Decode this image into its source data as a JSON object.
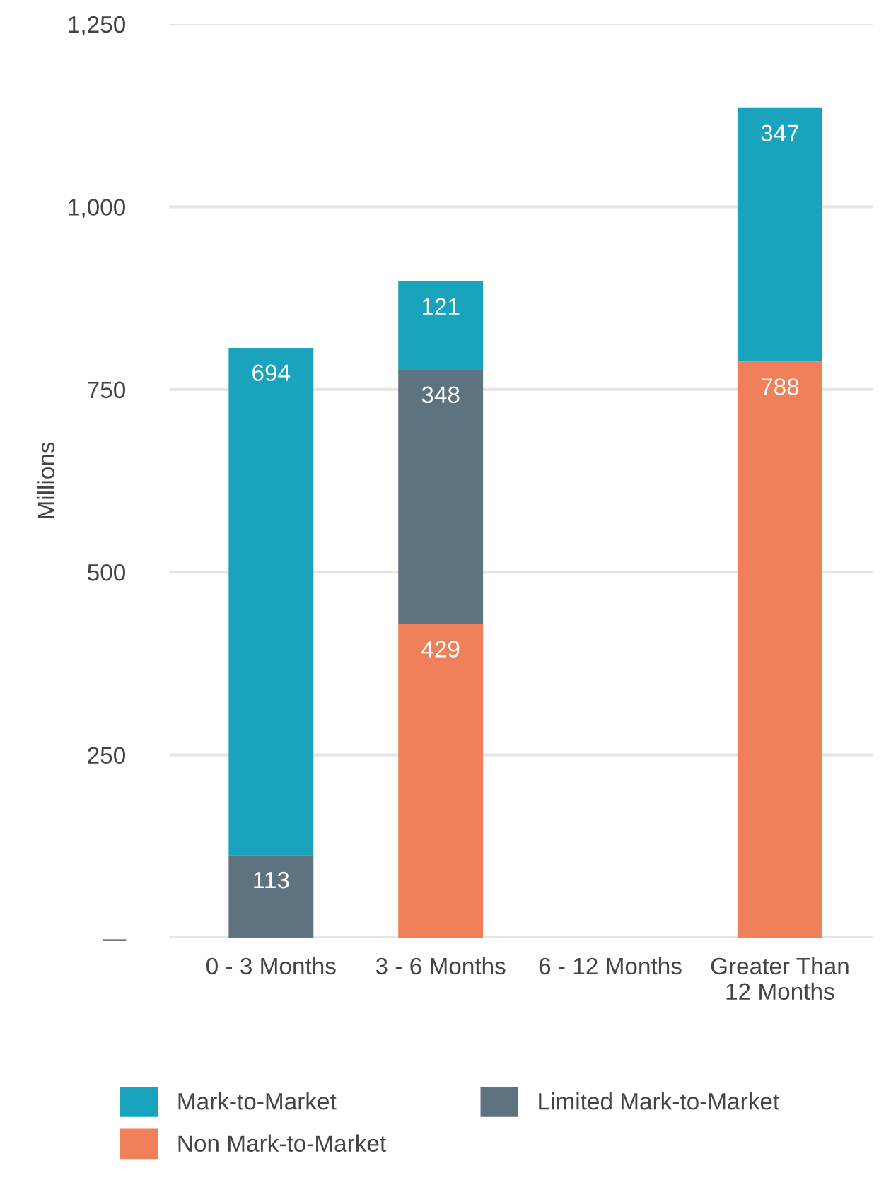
{
  "chart_data": {
    "type": "bar",
    "stacked": true,
    "ylabel": "Millions",
    "categories": [
      "0 - 3 Months",
      "3 - 6 Months",
      "6 - 12 Months",
      "Greater Than\n12 Months"
    ],
    "series": [
      {
        "name": "Non Mark-to-Market",
        "color": "#f0805a",
        "values": [
          null,
          429,
          null,
          788
        ]
      },
      {
        "name": "Limited Mark-to-Market",
        "color": "#5e7380",
        "values": [
          113,
          348,
          null,
          null
        ]
      },
      {
        "name": "Mark-to-Market",
        "color": "#19a3bd",
        "values": [
          694,
          121,
          null,
          347
        ]
      }
    ],
    "ylim": [
      0,
      1250
    ],
    "yticks": [
      {
        "value": 0,
        "label": "—"
      },
      250,
      500,
      750,
      {
        "value": 1000,
        "label": "1,000"
      },
      {
        "value": 1250,
        "label": "1,250"
      }
    ],
    "grid": "y",
    "legend": "bottom",
    "data_labels": true
  }
}
